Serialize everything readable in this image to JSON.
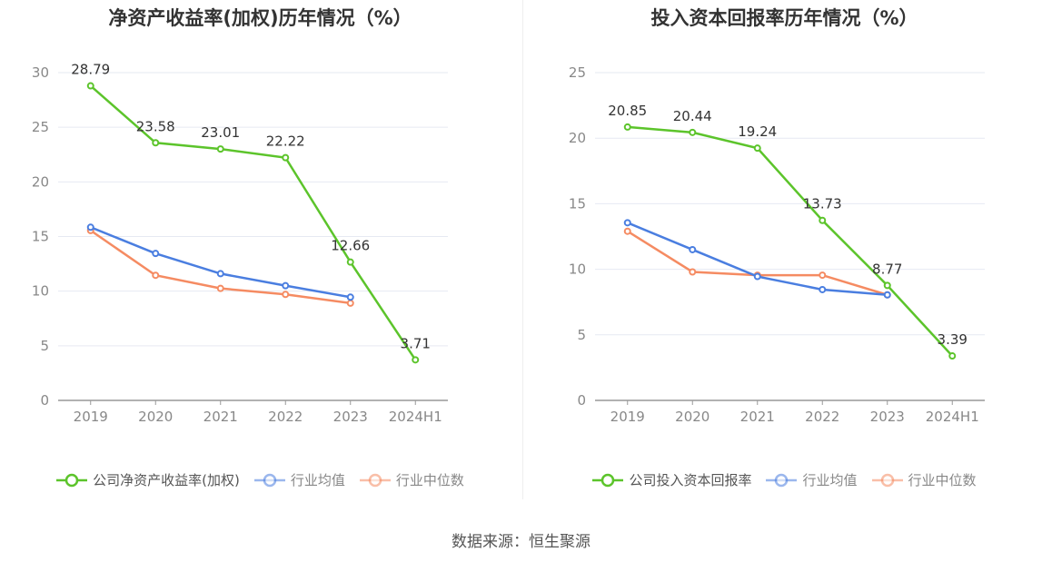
{
  "source_text": "数据来源：恒生聚源",
  "colors": {
    "company": "#5cc42b",
    "average": "#4a7ee0",
    "median": "#f58b62",
    "grid": "#e6e9f2",
    "axis": "#999999"
  },
  "chart_data": [
    {
      "type": "line",
      "title": "净资产收益率(加权)历年情况（%）",
      "categories": [
        "2019",
        "2020",
        "2021",
        "2022",
        "2023",
        "2024H1"
      ],
      "ylim": [
        0,
        30
      ],
      "yticks": [
        0,
        5,
        10,
        15,
        20,
        25,
        30
      ],
      "grid": true,
      "legend_position": "bottom",
      "series": [
        {
          "name": "公司净资产收益率(加权)",
          "color": "#5cc42b",
          "labels": true,
          "values": [
            28.79,
            23.58,
            23.01,
            22.22,
            12.66,
            3.71
          ]
        },
        {
          "name": "行业均值",
          "color": "#4a7ee0",
          "labels": false,
          "values": [
            15.85,
            13.45,
            11.6,
            10.5,
            9.45,
            null
          ]
        },
        {
          "name": "行业中位数",
          "color": "#f58b62",
          "labels": false,
          "values": [
            15.55,
            11.45,
            10.25,
            9.7,
            8.9,
            null
          ]
        }
      ]
    },
    {
      "type": "line",
      "title": "投入资本回报率历年情况（%）",
      "categories": [
        "2019",
        "2020",
        "2021",
        "2022",
        "2023",
        "2024H1"
      ],
      "ylim": [
        0,
        25
      ],
      "yticks": [
        0,
        5,
        10,
        15,
        20,
        25
      ],
      "grid": true,
      "legend_position": "bottom",
      "series": [
        {
          "name": "公司投入资本回报率",
          "color": "#5cc42b",
          "labels": true,
          "values": [
            20.85,
            20.44,
            19.24,
            13.73,
            8.77,
            3.39
          ]
        },
        {
          "name": "行业均值",
          "color": "#4a7ee0",
          "labels": false,
          "values": [
            13.55,
            11.5,
            9.45,
            8.45,
            8.05,
            null
          ]
        },
        {
          "name": "行业中位数",
          "color": "#f58b62",
          "labels": false,
          "values": [
            12.9,
            9.8,
            9.55,
            9.55,
            8.05,
            null
          ]
        }
      ]
    }
  ]
}
